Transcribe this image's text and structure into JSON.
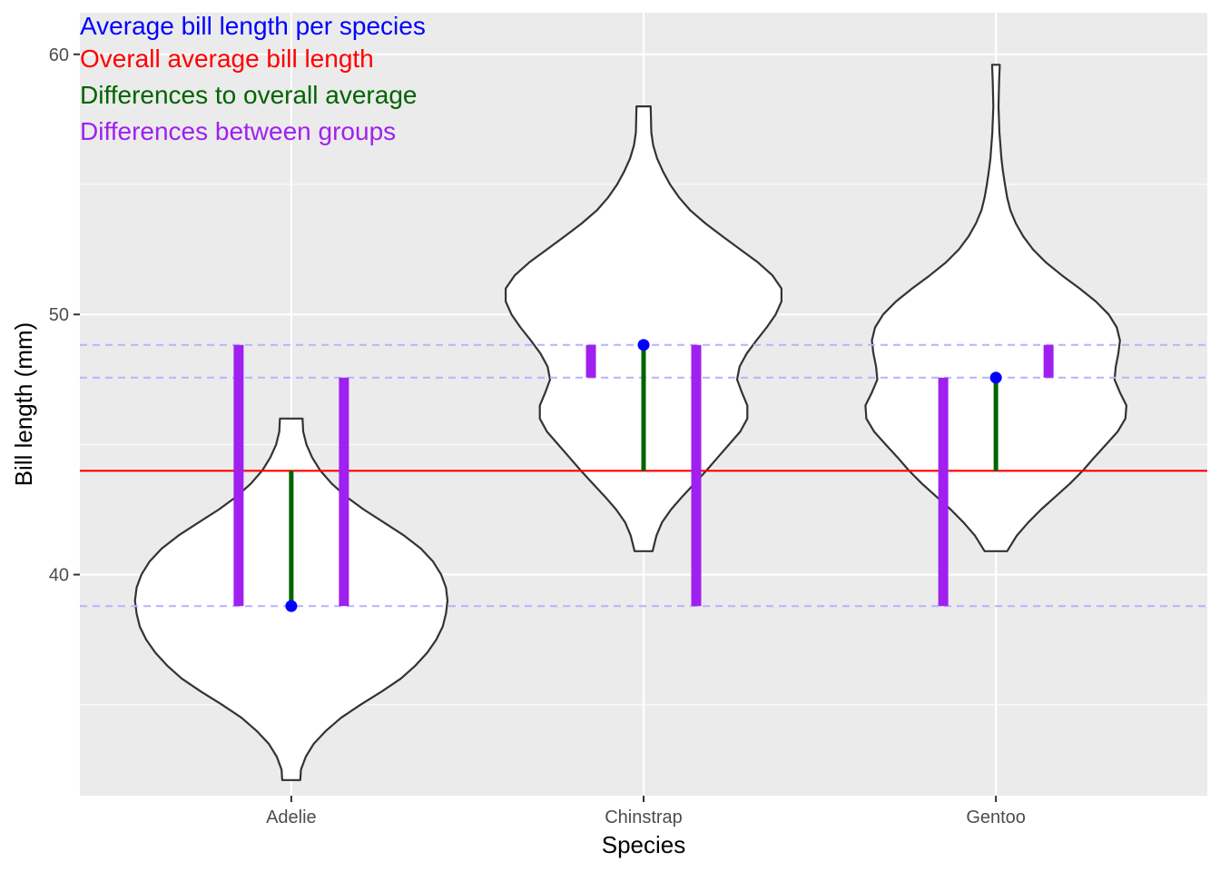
{
  "chart_data": {
    "type": "violin",
    "xlabel": "Species",
    "ylabel": "Bill length (mm)",
    "categories": [
      "Adelie",
      "Chinstrap",
      "Gentoo"
    ],
    "ylim": [
      31.5,
      61.6
    ],
    "y_ticks": [
      40,
      50,
      60
    ],
    "y_tick_labels": [
      "40",
      "50",
      "60"
    ],
    "y_minor_ticks": [
      35,
      45,
      55
    ],
    "grid": true,
    "group_means": [
      38.79,
      48.83,
      47.57
    ],
    "overall_mean": 43.99,
    "annotations": [
      {
        "text": "Average bill length per species",
        "color": "#0000ff"
      },
      {
        "text": "Overall average bill length",
        "color": "#ff0000"
      },
      {
        "text": "Differences to overall average",
        "color": "#006400"
      },
      {
        "text": "Differences between groups",
        "color": "#a020f0"
      }
    ],
    "violins": [
      {
        "category": "Adelie",
        "min": 32.1,
        "max": 46.0,
        "profile": [
          [
            32.1,
            0.28
          ],
          [
            32.5,
            0.3
          ],
          [
            33.0,
            0.45
          ],
          [
            33.5,
            0.7
          ],
          [
            34.0,
            1.08
          ],
          [
            34.5,
            1.55
          ],
          [
            35.0,
            2.15
          ],
          [
            35.5,
            2.8
          ],
          [
            36.0,
            3.4
          ],
          [
            36.5,
            3.85
          ],
          [
            37.0,
            4.22
          ],
          [
            37.5,
            4.5
          ],
          [
            38.0,
            4.7
          ],
          [
            38.5,
            4.8
          ],
          [
            39.0,
            4.85
          ],
          [
            39.5,
            4.8
          ],
          [
            40.0,
            4.65
          ],
          [
            40.5,
            4.4
          ],
          [
            41.0,
            4.02
          ],
          [
            41.5,
            3.5
          ],
          [
            42.0,
            2.88
          ],
          [
            42.5,
            2.25
          ],
          [
            43.0,
            1.7
          ],
          [
            43.5,
            1.25
          ],
          [
            44.0,
            0.9
          ],
          [
            44.5,
            0.65
          ],
          [
            45.0,
            0.47
          ],
          [
            45.5,
            0.37
          ],
          [
            46.0,
            0.35
          ]
        ]
      },
      {
        "category": "Chinstrap",
        "min": 40.9,
        "max": 58.0,
        "profile": [
          [
            40.9,
            0.28
          ],
          [
            41.5,
            0.4
          ],
          [
            42.0,
            0.57
          ],
          [
            42.5,
            0.85
          ],
          [
            43.0,
            1.2
          ],
          [
            43.5,
            1.58
          ],
          [
            44.0,
            1.95
          ],
          [
            44.5,
            2.3
          ],
          [
            45.0,
            2.65
          ],
          [
            45.5,
            3.0
          ],
          [
            46.0,
            3.22
          ],
          [
            46.5,
            3.22
          ],
          [
            47.0,
            3.05
          ],
          [
            47.5,
            2.9
          ],
          [
            48.0,
            2.98
          ],
          [
            48.5,
            3.2
          ],
          [
            49.0,
            3.5
          ],
          [
            49.5,
            3.82
          ],
          [
            50.0,
            4.1
          ],
          [
            50.5,
            4.28
          ],
          [
            51.0,
            4.28
          ],
          [
            51.5,
            4.0
          ],
          [
            52.0,
            3.55
          ],
          [
            52.5,
            3.0
          ],
          [
            53.0,
            2.45
          ],
          [
            53.5,
            1.92
          ],
          [
            54.0,
            1.45
          ],
          [
            54.5,
            1.1
          ],
          [
            55.0,
            0.82
          ],
          [
            55.5,
            0.6
          ],
          [
            56.0,
            0.42
          ],
          [
            56.5,
            0.3
          ],
          [
            57.0,
            0.24
          ],
          [
            58.0,
            0.22
          ]
        ]
      },
      {
        "category": "Gentoo",
        "min": 40.9,
        "max": 59.6,
        "profile": [
          [
            40.9,
            0.35
          ],
          [
            41.5,
            0.65
          ],
          [
            42.0,
            1.0
          ],
          [
            42.5,
            1.4
          ],
          [
            43.0,
            1.85
          ],
          [
            43.5,
            2.3
          ],
          [
            44.0,
            2.7
          ],
          [
            44.5,
            3.05
          ],
          [
            45.0,
            3.42
          ],
          [
            45.5,
            3.78
          ],
          [
            46.0,
            4.02
          ],
          [
            46.5,
            4.05
          ],
          [
            47.0,
            3.85
          ],
          [
            47.5,
            3.68
          ],
          [
            48.0,
            3.72
          ],
          [
            48.5,
            3.8
          ],
          [
            49.0,
            3.85
          ],
          [
            49.5,
            3.75
          ],
          [
            50.0,
            3.5
          ],
          [
            50.5,
            3.1
          ],
          [
            51.0,
            2.6
          ],
          [
            51.5,
            2.05
          ],
          [
            52.0,
            1.55
          ],
          [
            52.5,
            1.15
          ],
          [
            53.0,
            0.85
          ],
          [
            53.5,
            0.62
          ],
          [
            54.0,
            0.45
          ],
          [
            54.5,
            0.35
          ],
          [
            55.0,
            0.28
          ],
          [
            55.5,
            0.22
          ],
          [
            56.0,
            0.17
          ],
          [
            57.0,
            0.11
          ],
          [
            58.0,
            0.08
          ],
          [
            59.0,
            0.1
          ],
          [
            59.6,
            0.12
          ]
        ]
      }
    ],
    "between_group_differences": [
      {
        "category": "Adelie",
        "from": 38.79,
        "to": 48.83
      },
      {
        "category": "Adelie",
        "from": 38.79,
        "to": 47.57
      },
      {
        "category": "Chinstrap",
        "from": 48.83,
        "to": 47.57
      },
      {
        "category": "Chinstrap",
        "from": 48.83,
        "to": 38.79
      },
      {
        "category": "Gentoo",
        "from": 47.57,
        "to": 38.79
      },
      {
        "category": "Gentoo",
        "from": 47.57,
        "to": 48.83
      }
    ],
    "colors": {
      "panel_background": "#ebebeb",
      "grid": "#ffffff",
      "violin_fill": "#ffffff",
      "violin_outline": "#333333",
      "group_mean": "#0000ff",
      "group_mean_reference": "#b4b4ff",
      "overall_mean": "#ff0000",
      "difference_to_overall": "#006400",
      "difference_between_groups": "#a020f0"
    }
  }
}
